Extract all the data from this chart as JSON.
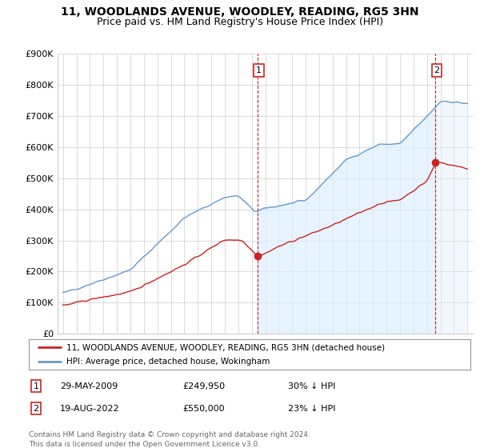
{
  "title": "11, WOODLANDS AVENUE, WOODLEY, READING, RG5 3HN",
  "subtitle": "Price paid vs. HM Land Registry's House Price Index (HPI)",
  "ylim": [
    0,
    900000
  ],
  "yticks": [
    0,
    100000,
    200000,
    300000,
    400000,
    500000,
    600000,
    700000,
    800000,
    900000
  ],
  "ytick_labels": [
    "£0",
    "£100K",
    "£200K",
    "£300K",
    "£400K",
    "£500K",
    "£600K",
    "£700K",
    "£800K",
    "£900K"
  ],
  "hpi_color": "#6699cc",
  "hpi_fill_color": "#ddeeff",
  "price_color": "#cc2222",
  "t1": 2009.41,
  "t1_value": 249950,
  "t2": 2022.63,
  "t2_value": 550000,
  "legend_entry1": "11, WOODLANDS AVENUE, WOODLEY, READING, RG5 3HN (detached house)",
  "legend_entry2": "HPI: Average price, detached house, Wokingham",
  "table_row1_num": "1",
  "table_row1_date": "29-MAY-2009",
  "table_row1_price": "£249,950",
  "table_row1_hpi": "30% ↓ HPI",
  "table_row2_num": "2",
  "table_row2_date": "19-AUG-2022",
  "table_row2_price": "£550,000",
  "table_row2_hpi": "23% ↓ HPI",
  "footer": "Contains HM Land Registry data © Crown copyright and database right 2024.\nThis data is licensed under the Open Government Licence v3.0.",
  "bg_color": "#ffffff",
  "grid_color": "#cccccc",
  "title_fontsize": 10,
  "subtitle_fontsize": 9,
  "tick_fontsize": 8,
  "xlim_left": 1994.6,
  "xlim_right": 2025.4
}
